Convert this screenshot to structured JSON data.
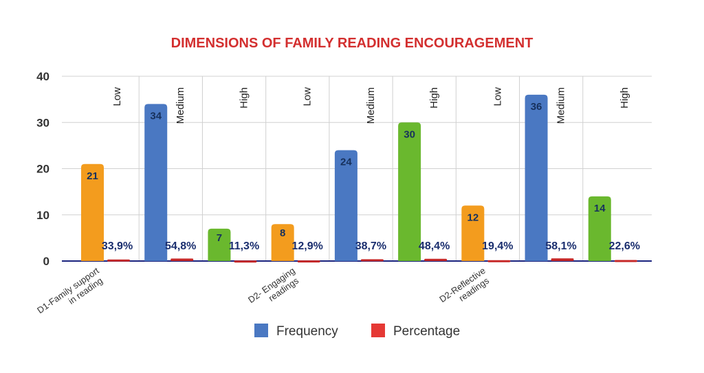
{
  "chart_data": {
    "type": "bar",
    "title": "DIMENSIONS OF FAMILY READING ENCOURAGEMENT",
    "ylim": [
      0,
      40
    ],
    "yticks": [
      "0",
      "10",
      "20",
      "30",
      "40"
    ],
    "grid": true,
    "legend_position": "bottom",
    "groups": [
      "D1-Family support in reading",
      "D2- Engaging readings",
      "D2-Reflective readings"
    ],
    "categories": [
      "Low",
      "Medium",
      "High",
      "Low",
      "Medium",
      "High",
      "Low",
      "Medium",
      "High"
    ],
    "category_group": [
      0,
      0,
      0,
      1,
      1,
      1,
      2,
      2,
      2
    ],
    "series": [
      {
        "name": "Frequency",
        "values": [
          21,
          34,
          7,
          8,
          24,
          30,
          12,
          36,
          14
        ],
        "labels": [
          "21",
          "34",
          "7",
          "8",
          "24",
          "30",
          "12",
          "36",
          "14"
        ]
      },
      {
        "name": "Percentage",
        "values": [
          0.339,
          0.548,
          0.113,
          0.129,
          0.387,
          0.484,
          0.194,
          0.581,
          0.226
        ],
        "labels": [
          "33,9%",
          "54,8%",
          "11,3%",
          "12,9%",
          "38,7%",
          "48,4%",
          "19,4%",
          "58,1%",
          "22,6%"
        ]
      }
    ],
    "colors": {
      "low": "#f39c1e",
      "medium": "#4a78c2",
      "high": "#6ab82e",
      "percentage": "#c62828",
      "legend_frequency": "#4a78c2",
      "legend_percentage": "#e53935",
      "title": "#d32f2f",
      "axis": "#1a237e",
      "grid": "#d0d0d0"
    }
  }
}
